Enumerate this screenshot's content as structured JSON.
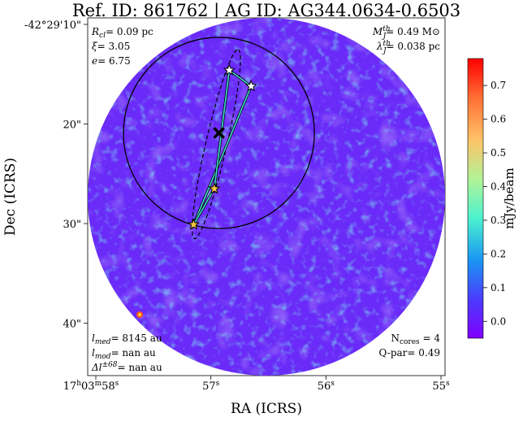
{
  "chart_data": {
    "type": "heatmap",
    "title": "Ref. ID: 861762 | AG ID: AG344.0634-0.6503",
    "xlabel": "RA (ICRS)",
    "ylabel": "Dec (ICRS)",
    "x_ticks": [
      {
        "h": "17",
        "hs": "h",
        "m": "03",
        "ms": "m",
        "s": "58",
        "ss": "s",
        "pos": 58
      },
      {
        "s": "57",
        "ss": "s",
        "pos": 57
      },
      {
        "s": "56",
        "ss": "s",
        "pos": 56
      },
      {
        "s": "55",
        "ss": "s",
        "pos": 55
      }
    ],
    "y_ticks": [
      {
        "label": "-42°29'10\"",
        "pos": 10
      },
      {
        "label": "20\"",
        "pos": 20
      },
      {
        "label": "30\"",
        "pos": 30
      },
      {
        "label": "40\"",
        "pos": 40
      }
    ],
    "colorbar": {
      "label": "mJy/beam",
      "range": [
        -0.05,
        0.78
      ],
      "ticks": [
        "0.0",
        "0.1",
        "0.2",
        "0.3",
        "0.4",
        "0.5",
        "0.6",
        "0.7"
      ],
      "tick_values": [
        0.0,
        0.1,
        0.2,
        0.3,
        0.4,
        0.5,
        0.6,
        0.7
      ],
      "colormap": "rainbow"
    },
    "annotations": {
      "top_left": [
        {
          "sym": "R",
          "sub": "cl",
          "rest": "= 0.09 pc"
        },
        {
          "sym": "ξ",
          "sub": "",
          "rest": "= 3.05"
        },
        {
          "sym": "e",
          "sub": "",
          "rest": "= 6.75"
        }
      ],
      "top_right": [
        {
          "sym": "M",
          "sup": "th",
          "sub": "J",
          "rest": "= 0.49 M",
          "tail": "⊙"
        },
        {
          "sym": "λ",
          "sup": "th",
          "sub": "J",
          "rest": "= 0.038 pc",
          "tail": ""
        }
      ],
      "bottom_left": [
        {
          "sym": "l",
          "sup": "",
          "sub": "med",
          "rest": "= 8145 au"
        },
        {
          "sym": "l",
          "sup": "",
          "sub": "mod",
          "rest": "= nan au"
        },
        {
          "sym": "Δl",
          "sup": "±68",
          "sub": "",
          "rest": "= nan au"
        }
      ],
      "bottom_right": [
        "N",
        "cores",
        " = 4",
        "Q-par= 0.49"
      ]
    },
    "features": {
      "cores": [
        {
          "ra_s": 56.84,
          "dec_s": 14.6,
          "color": "#ffffff"
        },
        {
          "ra_s": 56.65,
          "dec_s": 16.2,
          "color": "#ffffff"
        },
        {
          "ra_s": 56.97,
          "dec_s": 26.5,
          "color": "#f5c542"
        },
        {
          "ra_s": 57.15,
          "dec_s": 30.1,
          "color": "#f5c542"
        }
      ],
      "center_marker": {
        "ra_s": 56.93,
        "dec_s": 20.9
      },
      "large_circle": {
        "ra_s": 56.93,
        "dec_s": 20.9,
        "radius_arcsec": 9.6
      },
      "ellipse_axis": "core-to-core",
      "colors": {
        "mst": "#40e0d0",
        "outline": "#000000",
        "frame": "#000000"
      }
    }
  }
}
